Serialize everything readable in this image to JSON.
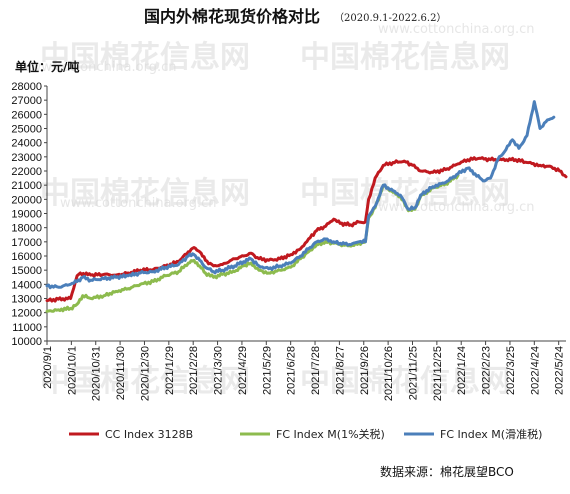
{
  "watermark": {
    "logo": "中国棉花信息网",
    "url": "www.cottonchina.org.cn"
  },
  "chart_data": {
    "type": "line",
    "title": "国内外棉花现货价格对比",
    "subtitle": "（2020.9.1-2022.6.2）",
    "unit_label": "单位：元/吨",
    "source": "数据来源：棉花展望BCO",
    "ylim": [
      10000,
      28000
    ],
    "yticks": [
      10000,
      11000,
      12000,
      13000,
      14000,
      15000,
      16000,
      17000,
      18000,
      19000,
      20000,
      21000,
      22000,
      23000,
      24000,
      25000,
      26000,
      27000,
      28000
    ],
    "xlim": [
      "2020-09-01",
      "2022-06-02"
    ],
    "xticks": [
      "2020/9/1",
      "2020/10/1",
      "2020/10/31",
      "2020/11/30",
      "2020/12/30",
      "2021/1/29",
      "2021/2/28",
      "2021/3/30",
      "2021/4/29",
      "2021/5/29",
      "2021/6/28",
      "2021/7/28",
      "2021/8/27",
      "2021/9/26",
      "2021/10/26",
      "2021/11/25",
      "2021/12/25",
      "2022/1/24",
      "2022/2/23",
      "2022/3/25",
      "2022/4/24",
      "2022/5/24"
    ],
    "grid": false,
    "legend_position": "bottom",
    "series": [
      {
        "name": "CC Index 3128B",
        "color": "#c0191f",
        "points": [
          [
            "2020-09-01",
            12850
          ],
          [
            "2020-09-15",
            12950
          ],
          [
            "2020-09-30",
            13000
          ],
          [
            "2020-10-08",
            14600
          ],
          [
            "2020-10-12",
            14800
          ],
          [
            "2020-10-25",
            14650
          ],
          [
            "2020-11-10",
            14700
          ],
          [
            "2020-11-25",
            14650
          ],
          [
            "2020-12-10",
            14800
          ],
          [
            "2020-12-25",
            15000
          ],
          [
            "2021-01-10",
            15050
          ],
          [
            "2021-01-25",
            15300
          ],
          [
            "2021-02-10",
            15600
          ],
          [
            "2021-02-22",
            16300
          ],
          [
            "2021-03-01",
            16600
          ],
          [
            "2021-03-08",
            16300
          ],
          [
            "2021-03-15",
            15700
          ],
          [
            "2021-03-25",
            15300
          ],
          [
            "2021-04-05",
            15400
          ],
          [
            "2021-04-20",
            15800
          ],
          [
            "2021-05-01",
            16000
          ],
          [
            "2021-05-10",
            16200
          ],
          [
            "2021-05-20",
            15800
          ],
          [
            "2021-06-01",
            15700
          ],
          [
            "2021-06-15",
            15800
          ],
          [
            "2021-06-28",
            16100
          ],
          [
            "2021-07-10",
            16500
          ],
          [
            "2021-07-20",
            17200
          ],
          [
            "2021-07-30",
            17800
          ],
          [
            "2021-08-10",
            18100
          ],
          [
            "2021-08-20",
            18600
          ],
          [
            "2021-08-28",
            18300
          ],
          [
            "2021-09-10",
            18200
          ],
          [
            "2021-09-20",
            18400
          ],
          [
            "2021-09-28",
            18400
          ],
          [
            "2021-10-02",
            20000
          ],
          [
            "2021-10-10",
            21500
          ],
          [
            "2021-10-20",
            22400
          ],
          [
            "2021-11-01",
            22600
          ],
          [
            "2021-11-15",
            22700
          ],
          [
            "2021-11-25",
            22400
          ],
          [
            "2021-12-05",
            22000
          ],
          [
            "2021-12-20",
            21900
          ],
          [
            "2022-01-05",
            22100
          ],
          [
            "2022-01-20",
            22500
          ],
          [
            "2022-02-01",
            22800
          ],
          [
            "2022-02-15",
            22900
          ],
          [
            "2022-03-01",
            22800
          ],
          [
            "2022-03-15",
            22800
          ],
          [
            "2022-04-01",
            22800
          ],
          [
            "2022-04-15",
            22600
          ],
          [
            "2022-05-01",
            22400
          ],
          [
            "2022-05-15",
            22300
          ],
          [
            "2022-05-25",
            22000
          ],
          [
            "2022-06-02",
            21600
          ]
        ]
      },
      {
        "name": "FC Index M(1%关税)",
        "color": "#8dbb4e",
        "points": [
          [
            "2020-09-01",
            12100
          ],
          [
            "2020-09-15",
            12200
          ],
          [
            "2020-09-30",
            12300
          ],
          [
            "2020-10-08",
            12600
          ],
          [
            "2020-10-15",
            13200
          ],
          [
            "2020-10-25",
            13000
          ],
          [
            "2020-11-10",
            13200
          ],
          [
            "2020-11-25",
            13500
          ],
          [
            "2020-12-10",
            13700
          ],
          [
            "2020-12-25",
            14000
          ],
          [
            "2021-01-10",
            14200
          ],
          [
            "2021-01-25",
            14600
          ],
          [
            "2021-02-10",
            14900
          ],
          [
            "2021-02-22",
            15500
          ],
          [
            "2021-03-01",
            15700
          ],
          [
            "2021-03-08",
            15300
          ],
          [
            "2021-03-15",
            14800
          ],
          [
            "2021-03-25",
            14500
          ],
          [
            "2021-04-05",
            14700
          ],
          [
            "2021-04-20",
            14900
          ],
          [
            "2021-05-01",
            15300
          ],
          [
            "2021-05-10",
            15500
          ],
          [
            "2021-05-20",
            15000
          ],
          [
            "2021-06-01",
            14800
          ],
          [
            "2021-06-15",
            15000
          ],
          [
            "2021-06-28",
            15200
          ],
          [
            "2021-07-10",
            15800
          ],
          [
            "2021-07-20",
            16300
          ],
          [
            "2021-07-30",
            16800
          ],
          [
            "2021-08-10",
            17000
          ],
          [
            "2021-08-20",
            16900
          ],
          [
            "2021-08-28",
            16800
          ],
          [
            "2021-09-10",
            16700
          ],
          [
            "2021-09-20",
            16900
          ],
          [
            "2021-09-28",
            17000
          ],
          [
            "2021-10-02",
            18700
          ],
          [
            "2021-10-10",
            19400
          ],
          [
            "2021-10-20",
            21000
          ],
          [
            "2021-11-01",
            20500
          ],
          [
            "2021-11-10",
            20200
          ],
          [
            "2021-11-20",
            19200
          ],
          [
            "2021-11-28",
            19300
          ],
          [
            "2021-12-05",
            20200
          ],
          [
            "2021-12-20",
            20800
          ],
          [
            "2022-01-05",
            21100
          ],
          [
            "2022-01-20",
            21700
          ]
        ]
      },
      {
        "name": "FC Index M(滑准税)",
        "color": "#4b7fba",
        "points": [
          [
            "2020-09-01",
            13900
          ],
          [
            "2020-09-15",
            13800
          ],
          [
            "2020-09-30",
            14000
          ],
          [
            "2020-10-08",
            14200
          ],
          [
            "2020-10-15",
            14500
          ],
          [
            "2020-10-25",
            14300
          ],
          [
            "2020-11-10",
            14400
          ],
          [
            "2020-11-25",
            14500
          ],
          [
            "2020-12-10",
            14600
          ],
          [
            "2020-12-25",
            14800
          ],
          [
            "2021-01-10",
            14900
          ],
          [
            "2021-01-25",
            15200
          ],
          [
            "2021-02-10",
            15400
          ],
          [
            "2021-02-22",
            16000
          ],
          [
            "2021-03-01",
            16100
          ],
          [
            "2021-03-08",
            15700
          ],
          [
            "2021-03-15",
            15200
          ],
          [
            "2021-03-25",
            14900
          ],
          [
            "2021-04-05",
            15000
          ],
          [
            "2021-04-20",
            15300
          ],
          [
            "2021-05-01",
            15600
          ],
          [
            "2021-05-10",
            15800
          ],
          [
            "2021-05-20",
            15300
          ],
          [
            "2021-06-01",
            15100
          ],
          [
            "2021-06-15",
            15300
          ],
          [
            "2021-06-28",
            15500
          ],
          [
            "2021-07-10",
            16000
          ],
          [
            "2021-07-20",
            16500
          ],
          [
            "2021-07-30",
            17000
          ],
          [
            "2021-08-10",
            17200
          ],
          [
            "2021-08-20",
            17000
          ],
          [
            "2021-08-28",
            16900
          ],
          [
            "2021-09-10",
            16800
          ],
          [
            "2021-09-20",
            17000
          ],
          [
            "2021-09-28",
            17000
          ],
          [
            "2021-10-02",
            18800
          ],
          [
            "2021-10-10",
            19500
          ],
          [
            "2021-10-20",
            21000
          ],
          [
            "2021-11-01",
            20600
          ],
          [
            "2021-11-10",
            20300
          ],
          [
            "2021-11-20",
            19300
          ],
          [
            "2021-11-28",
            19400
          ],
          [
            "2021-12-05",
            20300
          ],
          [
            "2021-12-20",
            20900
          ],
          [
            "2022-01-05",
            21200
          ],
          [
            "2022-01-20",
            21800
          ],
          [
            "2022-02-01",
            22200
          ],
          [
            "2022-02-10",
            21800
          ],
          [
            "2022-02-20",
            21300
          ],
          [
            "2022-03-01",
            21500
          ],
          [
            "2022-03-10",
            22800
          ],
          [
            "2022-03-20",
            23500
          ],
          [
            "2022-03-28",
            24200
          ],
          [
            "2022-04-05",
            23600
          ],
          [
            "2022-04-15",
            24500
          ],
          [
            "2022-04-24",
            26900
          ],
          [
            "2022-05-01",
            25000
          ],
          [
            "2022-05-10",
            25600
          ],
          [
            "2022-05-18",
            25800
          ]
        ]
      }
    ]
  }
}
